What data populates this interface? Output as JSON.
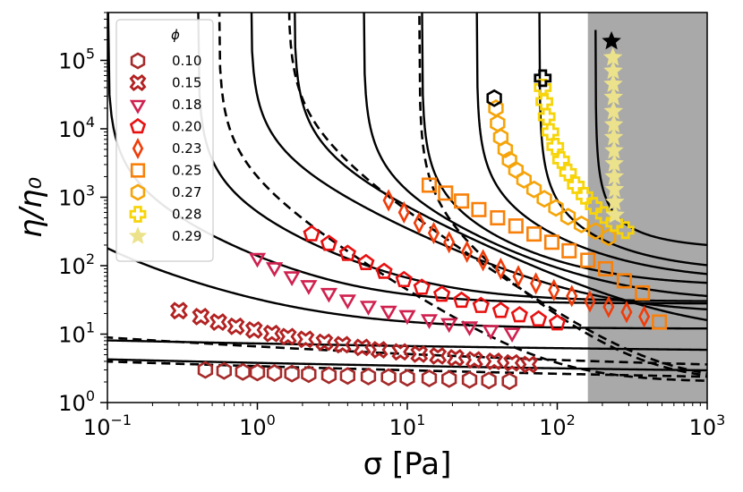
{
  "chart_data": {
    "type": "scatter",
    "title": "",
    "xlabel": "σ [Pa]",
    "ylabel": "η/η₀",
    "x_scale": "log",
    "y_scale": "log",
    "xlim": [
      0.1,
      1000
    ],
    "ylim": [
      1,
      500000
    ],
    "x_ticks": [
      {
        "value": 0.1,
        "base": "10",
        "exp": "−1"
      },
      {
        "value": 1,
        "base": "10",
        "exp": "0"
      },
      {
        "value": 10,
        "base": "10",
        "exp": "1"
      },
      {
        "value": 100,
        "base": "10",
        "exp": "2"
      },
      {
        "value": 1000,
        "base": "10",
        "exp": "3"
      }
    ],
    "y_ticks": [
      {
        "value": 1,
        "base": "10",
        "exp": "0"
      },
      {
        "value": 10,
        "base": "10",
        "exp": "1"
      },
      {
        "value": 100,
        "base": "10",
        "exp": "2"
      },
      {
        "value": 1000,
        "base": "10",
        "exp": "3"
      },
      {
        "value": 10000,
        "base": "10",
        "exp": "4"
      },
      {
        "value": 100000,
        "base": "10",
        "exp": "5"
      }
    ],
    "grid": false,
    "shaded_region": {
      "x_from": 160,
      "x_to": 1000,
      "color": "#a9a9a9"
    },
    "legend": {
      "title": "ϕ",
      "position": "top-left"
    },
    "series": [
      {
        "name": "0.10",
        "marker": "hexagon",
        "color": "#a52a2a",
        "x": [
          0.45,
          0.6,
          0.8,
          1.0,
          1.3,
          1.7,
          2.2,
          3.0,
          4.0,
          5.5,
          7.5,
          10,
          14,
          19,
          26,
          35,
          48
        ],
        "y": [
          3.0,
          2.9,
          2.8,
          2.75,
          2.7,
          2.65,
          2.6,
          2.5,
          2.45,
          2.4,
          2.35,
          2.3,
          2.25,
          2.2,
          2.15,
          2.1,
          2.05
        ],
        "end_marker": null
      },
      {
        "name": "0.15",
        "marker": "x",
        "color": "#b22222",
        "x": [
          0.3,
          0.42,
          0.55,
          0.72,
          0.95,
          1.25,
          1.6,
          2.1,
          2.8,
          3.7,
          5,
          6.5,
          9,
          12,
          16,
          21,
          28,
          38,
          50,
          65
        ],
        "y": [
          22,
          18,
          15,
          13,
          11.5,
          10.2,
          9.2,
          8.4,
          7.6,
          7.0,
          6.4,
          5.9,
          5.5,
          5.1,
          4.8,
          4.5,
          4.2,
          4.0,
          3.8,
          3.6
        ],
        "end_marker": null
      },
      {
        "name": "0.18",
        "marker": "triangle-down",
        "color": "#d0214f",
        "x": [
          1.0,
          1.3,
          1.7,
          2.2,
          3.0,
          4.0,
          5.5,
          7.5,
          10,
          14,
          19,
          26,
          36,
          50
        ],
        "y": [
          130,
          95,
          70,
          52,
          40,
          32,
          26,
          22,
          19,
          16.5,
          14.5,
          13,
          11.5,
          10.5
        ],
        "end_marker": null
      },
      {
        "name": "0.20",
        "marker": "pentagon",
        "color": "#e81010",
        "x": [
          2.3,
          3.0,
          4.0,
          5.3,
          7.0,
          9.5,
          12.5,
          17,
          23,
          31,
          42,
          56,
          75,
          100
        ],
        "y": [
          290,
          210,
          150,
          110,
          82,
          62,
          48,
          38,
          31,
          26,
          22,
          19,
          16.5,
          14.5
        ],
        "end_marker": null
      },
      {
        "name": "0.23",
        "marker": "diamond",
        "color": "#f03c0a",
        "x": [
          7.5,
          9.5,
          12,
          15,
          19,
          25,
          32,
          42,
          55,
          72,
          95,
          125,
          165,
          220,
          290,
          380
        ],
        "y": [
          900,
          600,
          420,
          300,
          220,
          160,
          120,
          90,
          70,
          55,
          44,
          36,
          30,
          25,
          21,
          18
        ],
        "end_marker": null
      },
      {
        "name": "0.25",
        "marker": "square",
        "color": "#f8800a",
        "x": [
          14,
          18,
          23,
          30,
          40,
          53,
          70,
          92,
          120,
          160,
          210,
          280,
          370,
          480
        ],
        "y": [
          1500,
          1150,
          880,
          660,
          500,
          380,
          290,
          220,
          165,
          120,
          90,
          60,
          40,
          15
        ],
        "end_marker": null
      },
      {
        "name": "0.27",
        "marker": "hexagon",
        "color": "#f5a40a",
        "x": [
          39,
          40,
          42,
          45,
          48,
          53,
          60,
          70,
          82,
          98,
          118,
          145,
          180,
          220
        ],
        "y": [
          20000,
          12000,
          7500,
          5000,
          3500,
          2500,
          1800,
          1300,
          950,
          700,
          520,
          400,
          320,
          260
        ],
        "end_marker": {
          "x": 38,
          "y": 28000,
          "marker": "hexagon",
          "color": "#000000"
        }
      },
      {
        "name": "0.28",
        "marker": "plus",
        "color": "#f7d40a",
        "x": [
          80,
          82,
          85,
          90,
          97,
          106,
          118,
          133,
          152,
          175,
          205,
          240,
          285
        ],
        "y": [
          40000,
          25000,
          15000,
          9000,
          5500,
          3500,
          2300,
          1500,
          1050,
          750,
          550,
          420,
          330
        ],
        "end_marker": {
          "x": 80,
          "y": 55000,
          "marker": "plus",
          "color": "#000000"
        }
      },
      {
        "name": "0.29",
        "marker": "star",
        "color": "#ece28c",
        "x": [
          235,
          236,
          236,
          237,
          237,
          238,
          238,
          239,
          240,
          240,
          241,
          242,
          243
        ],
        "y": [
          110000,
          70000,
          45000,
          29000,
          18000,
          11500,
          7500,
          4800,
          3100,
          2000,
          1300,
          850,
          550
        ],
        "end_marker": {
          "x": 230,
          "y": 190000,
          "marker": "star",
          "color": "#000000"
        }
      }
    ],
    "model_curves_solid": [
      {
        "c": 1.5,
        "sigma_j": 0,
        "p": 0,
        "h": 2.3
      },
      {
        "c": 2.5,
        "sigma_j": 0,
        "p": 0,
        "h": 4.8
      },
      {
        "c": 20,
        "sigma_j": 0.03,
        "p": 0.8,
        "h": 12
      },
      {
        "c": 100,
        "sigma_j": 0.1,
        "p": 1,
        "h": 28
      },
      {
        "c": 350,
        "sigma_j": 0.4,
        "p": 1,
        "h": 30
      },
      {
        "c": 3000,
        "sigma_j": 0.9,
        "p": 1,
        "h": 20
      },
      {
        "c": 6000,
        "sigma_j": 1.75,
        "p": 1,
        "h": 10
      },
      {
        "c": 6000,
        "sigma_j": 5.1,
        "p": 1,
        "h": 30
      },
      {
        "c": 6000,
        "sigma_j": 12.5,
        "p": 1,
        "h": 50
      },
      {
        "c": 15000,
        "sigma_j": 29,
        "p": 1,
        "h": 60
      },
      {
        "c": 20000,
        "sigma_j": 76,
        "p": 1,
        "h": 80
      },
      {
        "c": 25000,
        "sigma_j": 180,
        "p": 1,
        "h": 170
      }
    ],
    "model_curves_dashed": [
      {
        "c": 1.8,
        "sigma_j": 0,
        "p": 0,
        "h": 1.6,
        "slope": -0.12
      },
      {
        "c": 4,
        "sigma_j": 0,
        "p": 0,
        "h": 2.6,
        "slope": -0.2
      },
      {
        "c": 900,
        "sigma_j": 0.55,
        "p": 1,
        "h": 2,
        "slope": -0.35
      },
      {
        "c": 15000,
        "sigma_j": 1.6,
        "p": 1,
        "h": 2,
        "slope": -0.45
      },
      {
        "c": 15000,
        "sigma_j": 12,
        "p": 1,
        "h": 2,
        "slope": -0.5
      }
    ]
  }
}
